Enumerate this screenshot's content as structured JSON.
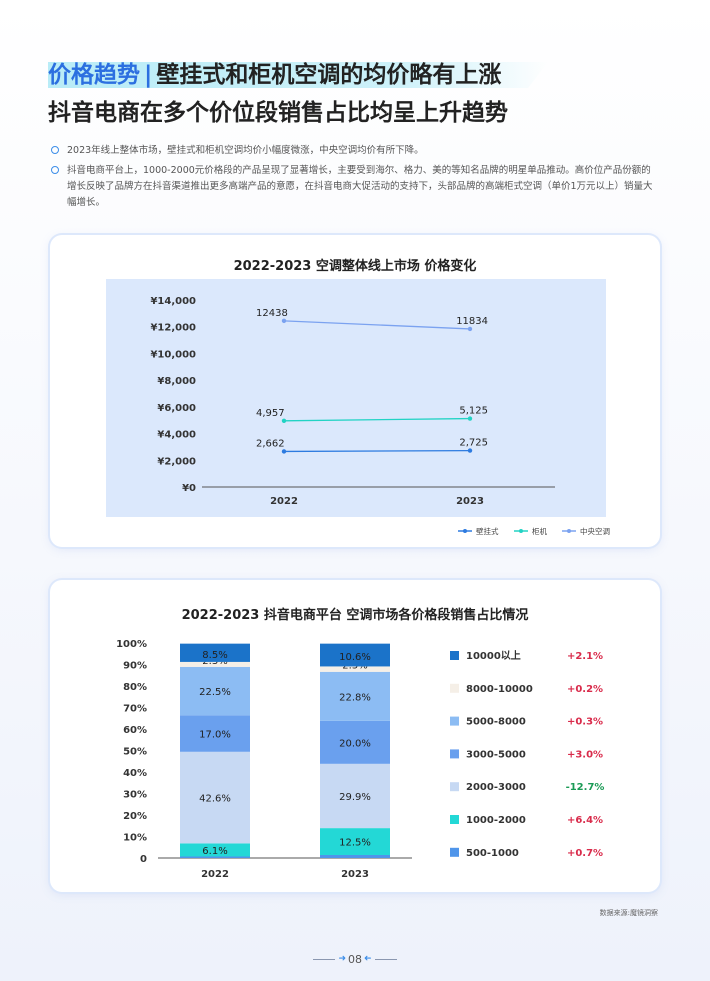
{
  "title": {
    "prefix": "价格趋势",
    "separator": "|",
    "line1": "壁挂式和柜机空调的均价略有上涨",
    "line2": "抖音电商在多个价位段销售占比均呈上升趋势"
  },
  "bullets": [
    "2023年线上整体市场，壁挂式和柜机空调均价小幅度微涨，中央空调均价有所下降。",
    "抖音电商平台上，1000-2000元价格段的产品呈现了显著增长，主要受到海尔、格力、美的等知名品牌的明星单品推动。高价位产品份额的增长反映了品牌方在抖音渠道推出更多高端产品的意愿，在抖音电商大促活动的支持下，头部品牌的高端柜式空调（单价1万元以上）销量大幅增长。"
  ],
  "chart_data": [
    {
      "type": "line",
      "title": "2022-2023 空调整体线上市场 价格变化",
      "categories": [
        "2022",
        "2023"
      ],
      "yticks": [
        "¥14,000",
        "¥12,000",
        "¥10,000",
        "¥8,000",
        "¥6,000",
        "¥4,000",
        "¥2,000",
        "¥0"
      ],
      "ylim": [
        0,
        14000
      ],
      "series": [
        {
          "name": "壁挂式",
          "values": [
            2662,
            2725
          ],
          "labels": [
            "2,662",
            "2,725"
          ],
          "color": "#2d7be0"
        },
        {
          "name": "柜机",
          "values": [
            4957,
            5125
          ],
          "labels": [
            "4,957",
            "5,125"
          ],
          "color": "#22d3c4"
        },
        {
          "name": "中央空调",
          "values": [
            12438,
            11834
          ],
          "labels": [
            "12438",
            "11834"
          ],
          "color": "#7ba2f0"
        }
      ],
      "plot_background": "#dbe8fc"
    },
    {
      "type": "bar",
      "stacked": true,
      "title": "2022-2023 抖音电商平台 空调市场各价格段销售占比情况",
      "categories": [
        "2022",
        "2023"
      ],
      "yticks": [
        "100%",
        "90%",
        "80%",
        "70%",
        "60%",
        "50%",
        "40%",
        "30%",
        "20%",
        "10%",
        "0"
      ],
      "ylim": [
        0,
        100
      ],
      "series": [
        {
          "name": "500-1000",
          "values": [
            0.7,
            1.4
          ],
          "labels": [
            "",
            ""
          ],
          "change": "+0.7%",
          "color": "#4f95ea"
        },
        {
          "name": "1000-2000",
          "values": [
            6.1,
            12.5
          ],
          "labels": [
            "6.1%",
            "12.5%"
          ],
          "change": "+6.4%",
          "color": "#23d8d6"
        },
        {
          "name": "2000-3000",
          "values": [
            42.6,
            29.9
          ],
          "labels": [
            "42.6%",
            "29.9%"
          ],
          "change": "-12.7%",
          "color": "#c7d9f3"
        },
        {
          "name": "3000-5000",
          "values": [
            17.0,
            20.0
          ],
          "labels": [
            "17.0%",
            "20.0%"
          ],
          "change": "+3.0%",
          "color": "#6aa0ee"
        },
        {
          "name": "5000-8000",
          "values": [
            22.5,
            22.8
          ],
          "labels": [
            "22.5%",
            "22.8%"
          ],
          "change": "+0.3%",
          "color": "#8cbcf3"
        },
        {
          "name": "8000-10000",
          "values": [
            2.3,
            2.5
          ],
          "labels": [
            "2.3%",
            "2.5%"
          ],
          "change": "+0.2%",
          "color": "#f5efe7"
        },
        {
          "name": "10000以上",
          "values": [
            8.5,
            10.6
          ],
          "labels": [
            "8.5%",
            "10.6%"
          ],
          "change": "+2.1%",
          "color": "#1b73c9"
        }
      ],
      "legend_order": [
        "10000以上",
        "8000-10000",
        "5000-8000",
        "3000-5000",
        "2000-3000",
        "1000-2000",
        "500-1000"
      ],
      "positive_color": "#d92b4b",
      "negative_color": "#1a9a55"
    }
  ],
  "source": "数据来源:魔镜洞察",
  "page_number": "08"
}
